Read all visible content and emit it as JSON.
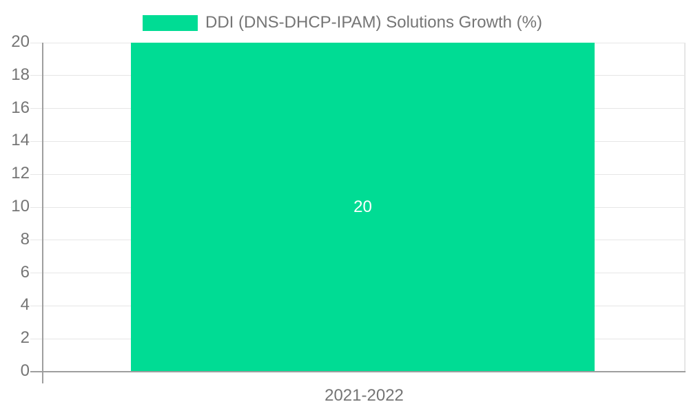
{
  "chart_data": {
    "type": "bar",
    "title": "",
    "categories": [
      "2021-2022"
    ],
    "series": [
      {
        "name": "DDI (DNS-DHCP-IPAM) Solutions Growth (%)",
        "values": [
          20
        ],
        "color": "#00dc94"
      }
    ],
    "bar_value_labels": [
      "20"
    ],
    "xlabel": "",
    "ylabel": "",
    "ylim": [
      0,
      20
    ],
    "ytick_step": 2,
    "yticks": [
      0,
      2,
      4,
      6,
      8,
      10,
      12,
      14,
      16,
      18,
      20
    ],
    "grid": true,
    "legend_position": "top",
    "colors": {
      "bar": "#00dc94",
      "bar_value_label": "#ffffff",
      "axis_text": "#757575",
      "gridline": "#e6e6e6",
      "axis_line": "#9e9e9e",
      "background": "#ffffff"
    }
  },
  "legend": {
    "label": "DDI (DNS-DHCP-IPAM) Solutions Growth (%)"
  },
  "x_axis": {
    "label": "2021-2022"
  }
}
